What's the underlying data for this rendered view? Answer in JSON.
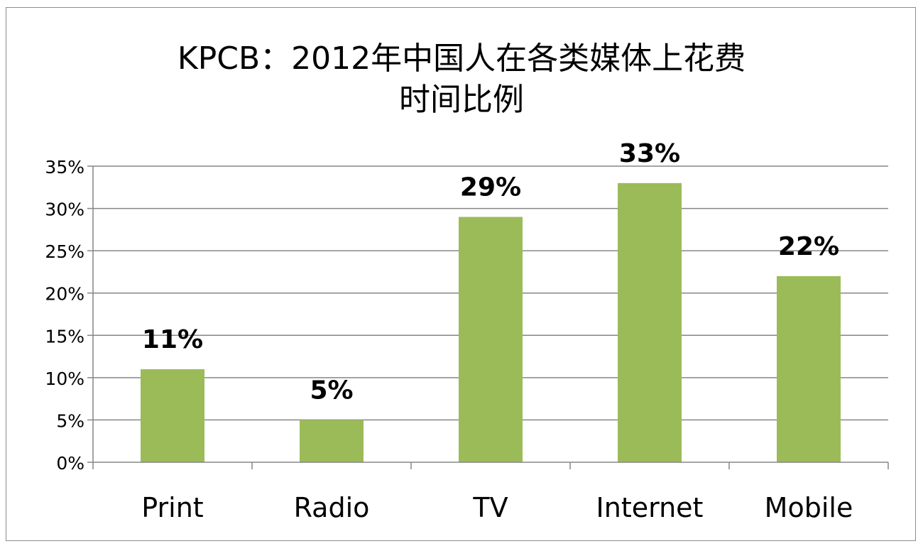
{
  "title_line1": "KPCB：2012年中国人在各类媒体上花费",
  "title_line2": "时间比例",
  "chart_data": {
    "type": "bar",
    "title": "KPCB：2012年中国人在各类媒体上花费时间比例",
    "categories": [
      "Print",
      "Radio",
      "TV",
      "Internet",
      "Mobile"
    ],
    "values": [
      11,
      5,
      29,
      33,
      22
    ],
    "data_labels": [
      "11%",
      "5%",
      "29%",
      "33%",
      "22%"
    ],
    "y_ticks": [
      "0%",
      "5%",
      "10%",
      "15%",
      "20%",
      "25%",
      "30%",
      "35%"
    ],
    "ylim": [
      0,
      35
    ],
    "y_tick_step": 5,
    "xlabel": "",
    "ylabel": "",
    "grid": true,
    "legend": "none",
    "bar_color": "#9bbb59",
    "grid_color": "#868686",
    "axis_color": "#868686"
  }
}
